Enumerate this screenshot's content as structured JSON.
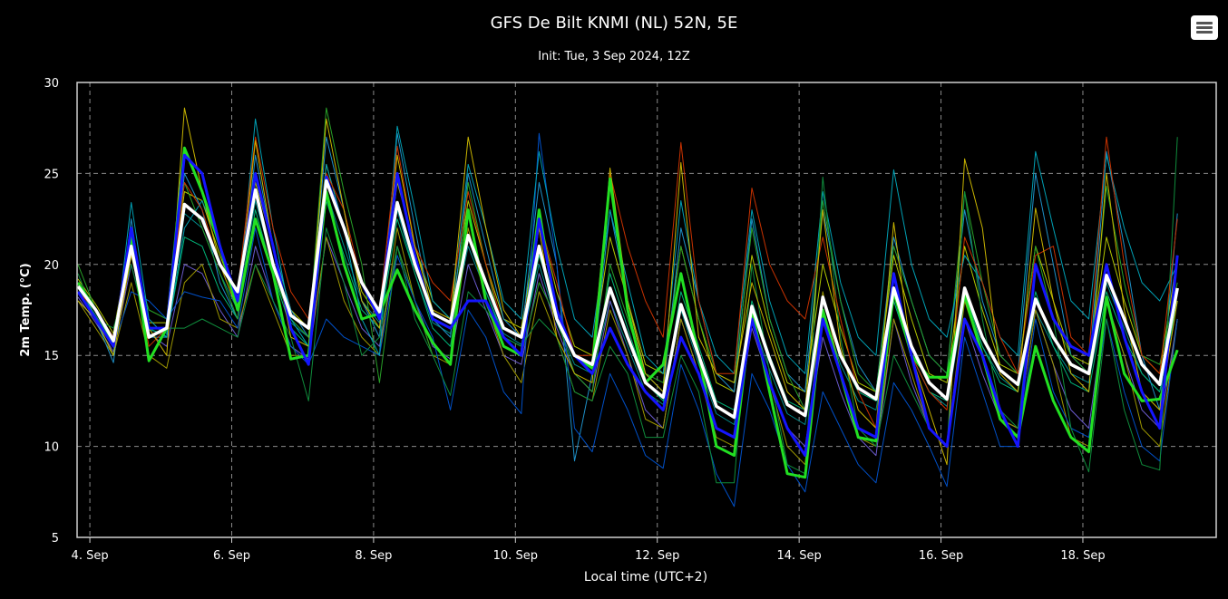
{
  "chart_data": {
    "type": "line",
    "title": "GFS De Bilt KNMI (NL) 52N, 5E",
    "subtitle": "Init: Tue, 3 Sep 2024, 12Z",
    "xlabel": "Local time (UTC+2)",
    "ylabel": "2m Temp. (°C)",
    "ylim": [
      5,
      30
    ],
    "yticks": [
      5,
      10,
      15,
      20,
      25,
      30
    ],
    "xlim_days": [
      3.82,
      19.88
    ],
    "xticks": [
      {
        "day": 4,
        "label": "4. Sep"
      },
      {
        "day": 6,
        "label": "6. Sep"
      },
      {
        "day": 8,
        "label": "8. Sep"
      },
      {
        "day": 10,
        "label": "10. Sep"
      },
      {
        "day": 12,
        "label": "12. Sep"
      },
      {
        "day": 14,
        "label": "14. Sep"
      },
      {
        "day": 16,
        "label": "16. Sep"
      },
      {
        "day": 18,
        "label": "18. Sep"
      }
    ],
    "x_start": "2024-09-03 20:00",
    "x_step_hours": 6,
    "grid": true,
    "series": [
      {
        "color": "#ffffff",
        "width": 3.5,
        "values": [
          18.8,
          17.5,
          15.8,
          21.0,
          16.0,
          16.5,
          23.3,
          22.5,
          20.0,
          18.5,
          24.1,
          20.0,
          17.2,
          16.5,
          24.6,
          22.0,
          19.0,
          17.4,
          23.4,
          20.0,
          17.3,
          16.8,
          21.6,
          19.0,
          16.5,
          16.0,
          21.0,
          17.0,
          15.0,
          14.5,
          18.7,
          16.0,
          13.5,
          12.7,
          17.8,
          15.0,
          12.2,
          11.6,
          17.7,
          14.8,
          12.3,
          11.7,
          18.2,
          15.0,
          13.2,
          12.6,
          18.7,
          15.5,
          13.5,
          12.6,
          18.7,
          16.0,
          14.2,
          13.4,
          18.1,
          16.0,
          14.5,
          14.0,
          19.4,
          17.0,
          14.5,
          13.4,
          18.7
        ]
      },
      {
        "color": "#1515ff",
        "width": 3,
        "values": [
          18.5,
          17.0,
          15.5,
          22.0,
          16.5,
          16.5,
          26.0,
          25.0,
          21.0,
          18.0,
          25.0,
          21.0,
          16.5,
          14.5,
          24.8,
          22.0,
          19.0,
          17.0,
          25.0,
          20.5,
          17.0,
          16.5,
          18.0,
          18.0,
          16.0,
          15.0,
          22.5,
          17.5,
          15.0,
          14.0,
          16.5,
          14.5,
          13.0,
          12.0,
          16.0,
          14.0,
          11.0,
          10.5,
          17.0,
          13.5,
          11.0,
          9.5,
          17.0,
          14.0,
          11.0,
          10.5,
          19.5,
          15.0,
          11.0,
          10.0,
          17.0,
          15.0,
          12.0,
          10.0,
          20.0,
          17.0,
          15.5,
          15.0,
          20.0,
          16.0,
          13.0,
          11.0,
          20.5
        ]
      },
      {
        "color": "#22e022",
        "width": 3,
        "values": [
          19.0,
          17.5,
          15.7,
          21.5,
          14.7,
          16.5,
          26.4,
          24.0,
          21.0,
          17.5,
          22.5,
          19.5,
          14.8,
          15.0,
          24.0,
          20.0,
          17.0,
          17.3,
          19.7,
          17.5,
          15.7,
          14.5,
          23.0,
          18.0,
          15.5,
          15.0,
          23.0,
          17.0,
          15.0,
          14.3,
          24.7,
          17.5,
          13.5,
          14.5,
          19.5,
          15.0,
          10.0,
          9.5,
          17.5,
          13.0,
          8.5,
          8.3,
          17.5,
          14.0,
          10.5,
          10.3,
          18.5,
          15.0,
          13.8,
          13.8,
          18.3,
          15.0,
          11.5,
          10.5,
          15.5,
          12.5,
          10.5,
          9.7,
          18.2,
          14.0,
          12.5,
          12.6,
          15.3
        ]
      },
      {
        "color": "#c8b400",
        "width": 1,
        "values": [
          18.0,
          17.0,
          15.0,
          20.5,
          16.5,
          15.0,
          28.6,
          24.0,
          20.0,
          17.5,
          26.8,
          21.0,
          16.0,
          15.5,
          28.0,
          23.0,
          18.0,
          16.5,
          26.0,
          21.0,
          17.5,
          17.0,
          27.0,
          22.0,
          17.5,
          16.0,
          22.0,
          16.0,
          14.0,
          13.5,
          25.3,
          18.0,
          14.0,
          13.0,
          25.6,
          16.0,
          14.0,
          13.5,
          19.0,
          16.0,
          13.0,
          12.0,
          23.0,
          15.5,
          12.0,
          11.0,
          22.3,
          15.0,
          12.0,
          9.0,
          25.8,
          22.0,
          14.0,
          13.0,
          23.1,
          18.0,
          14.0,
          13.0,
          25.0,
          17.5,
          13.0,
          12.0,
          18.0
        ]
      },
      {
        "color": "#c83200",
        "width": 1,
        "values": [
          18.5,
          17.5,
          16.0,
          21.0,
          15.5,
          16.5,
          24.5,
          23.0,
          20.0,
          18.5,
          27.0,
          22.0,
          18.5,
          17.0,
          25.0,
          23.0,
          19.0,
          17.5,
          26.5,
          21.0,
          19.0,
          18.0,
          24.0,
          20.0,
          16.5,
          16.0,
          22.5,
          19.0,
          15.0,
          15.0,
          25.0,
          21.0,
          18.0,
          16.0,
          26.7,
          18.0,
          14.0,
          14.0,
          24.2,
          20.0,
          18.0,
          17.0,
          21.5,
          17.0,
          13.0,
          11.0,
          18.5,
          15.0,
          13.0,
          12.0,
          21.5,
          19.0,
          16.0,
          14.0,
          20.5,
          21.0,
          16.0,
          15.0,
          27.0,
          20.0,
          15.0,
          14.0,
          22.5
        ]
      },
      {
        "color": "#0f8c3c",
        "width": 1,
        "values": [
          19.5,
          17.0,
          16.5,
          20.0,
          16.0,
          16.5,
          16.5,
          17.0,
          16.5,
          16.0,
          20.0,
          18.0,
          16.0,
          12.5,
          22.0,
          19.0,
          15.0,
          16.0,
          21.0,
          17.0,
          15.0,
          12.8,
          18.5,
          17.5,
          16.0,
          15.5,
          17.0,
          16.0,
          13.0,
          12.5,
          15.5,
          14.0,
          10.5,
          10.5,
          15.0,
          13.0,
          8.0,
          8.0,
          20.0,
          14.0,
          9.0,
          8.5,
          24.8,
          16.0,
          11.0,
          10.0,
          15.0,
          13.0,
          11.0,
          10.0,
          24.0,
          17.0,
          12.0,
          11.0,
          20.0,
          17.0,
          11.0,
          8.6,
          17.0,
          12.0,
          9.0,
          8.7,
          27.0
        ]
      },
      {
        "color": "#00a0b4",
        "width": 1,
        "values": [
          19.0,
          17.0,
          15.0,
          23.4,
          17.0,
          16.0,
          22.0,
          23.5,
          21.0,
          17.5,
          28.0,
          22.0,
          17.0,
          15.5,
          25.5,
          22.0,
          17.0,
          15.0,
          27.6,
          23.0,
          18.0,
          17.0,
          25.5,
          22.0,
          18.0,
          17.0,
          26.2,
          21.0,
          17.0,
          16.0,
          23.0,
          19.0,
          15.0,
          14.0,
          23.5,
          18.0,
          15.0,
          14.0,
          23.0,
          18.0,
          15.0,
          14.0,
          24.0,
          19.0,
          16.0,
          15.0,
          25.2,
          20.0,
          17.0,
          16.0,
          20.5,
          19.0,
          16.0,
          15.0,
          26.2,
          22.0,
          18.0,
          17.0,
          26.0,
          22.0,
          19.0,
          18.0,
          20.0
        ]
      },
      {
        "color": "#0050c8",
        "width": 1,
        "values": [
          18.0,
          17.0,
          15.5,
          18.5,
          18.0,
          17.0,
          18.5,
          18.2,
          18.0,
          16.5,
          22.0,
          18.0,
          15.5,
          14.5,
          17.0,
          16.0,
          15.5,
          15.0,
          20.5,
          18.0,
          16.0,
          12.0,
          17.5,
          16.0,
          13.0,
          11.8,
          27.2,
          20.0,
          11.0,
          9.7,
          14.0,
          12.0,
          9.5,
          8.8,
          14.5,
          12.0,
          8.5,
          6.7,
          14.0,
          12.0,
          9.0,
          7.5,
          13.0,
          11.0,
          9.0,
          8.0,
          13.5,
          12.0,
          10.0,
          7.8,
          16.0,
          13.0,
          10.0,
          10.0,
          17.0,
          13.0,
          11.0,
          10.5,
          17.0,
          13.0,
          10.0,
          9.2,
          17.0
        ]
      },
      {
        "color": "#28a028",
        "width": 1,
        "values": [
          20.0,
          17.5,
          16.0,
          20.5,
          17.5,
          17.0,
          24.5,
          22.0,
          19.5,
          17.0,
          22.5,
          19.5,
          17.0,
          16.0,
          28.6,
          24.0,
          20.0,
          13.5,
          21.0,
          18.0,
          15.0,
          15.0,
          24.5,
          20.0,
          16.0,
          15.0,
          19.0,
          17.0,
          14.0,
          13.0,
          20.0,
          17.0,
          14.0,
          13.5,
          21.0,
          17.0,
          14.0,
          13.5,
          22.0,
          17.0,
          14.0,
          12.0,
          23.5,
          18.0,
          14.0,
          13.0,
          21.0,
          18.0,
          15.0,
          14.0,
          24.0,
          19.0,
          15.0,
          14.0,
          21.0,
          17.0,
          15.0,
          14.0,
          24.3,
          19.0,
          15.0,
          14.5,
          19.0
        ]
      },
      {
        "color": "#1e90c8",
        "width": 1,
        "values": [
          18.5,
          17.0,
          14.6,
          22.5,
          16.0,
          16.0,
          25.0,
          23.0,
          19.0,
          17.0,
          26.0,
          21.0,
          17.5,
          16.0,
          27.0,
          23.0,
          18.0,
          16.0,
          27.2,
          22.0,
          17.0,
          16.0,
          25.0,
          21.0,
          17.0,
          16.0,
          24.5,
          20.0,
          9.2,
          14.0,
          23.0,
          18.0,
          14.0,
          13.0,
          22.0,
          18.0,
          14.0,
          13.0,
          22.5,
          17.0,
          14.0,
          13.0,
          23.0,
          18.0,
          14.5,
          13.0,
          21.5,
          18.0,
          15.0,
          14.0,
          23.0,
          18.0,
          15.0,
          14.0,
          25.0,
          20.0,
          15.0,
          14.0,
          26.2,
          21.0,
          15.0,
          12.0,
          22.8
        ]
      },
      {
        "color": "#9c9600",
        "width": 1,
        "values": [
          18.0,
          16.5,
          15.0,
          19.0,
          15.0,
          14.3,
          19.0,
          20.0,
          17.0,
          16.5,
          20.0,
          17.5,
          15.0,
          15.0,
          21.5,
          18.0,
          16.0,
          15.0,
          22.0,
          18.0,
          15.0,
          14.5,
          22.0,
          18.0,
          15.0,
          13.5,
          18.5,
          16.0,
          13.0,
          12.5,
          17.5,
          15.0,
          11.5,
          11.0,
          17.0,
          14.0,
          10.5,
          10.0,
          17.5,
          13.5,
          10.0,
          9.0,
          18.5,
          14.0,
          10.5,
          10.0,
          17.0,
          14.0,
          11.0,
          10.0,
          18.0,
          15.0,
          11.5,
          11.0,
          17.5,
          14.5,
          10.5,
          10.0,
          18.0,
          15.0,
          11.0,
          10.0,
          17.0
        ]
      },
      {
        "color": "#00b478",
        "width": 1,
        "values": [
          19.0,
          17.0,
          15.5,
          21.0,
          16.5,
          16.0,
          21.5,
          21.0,
          18.5,
          17.0,
          23.0,
          19.5,
          16.5,
          15.5,
          23.5,
          20.5,
          17.5,
          16.5,
          22.5,
          19.5,
          16.5,
          15.5,
          21.5,
          18.5,
          16.0,
          15.5,
          20.5,
          17.5,
          15.0,
          14.0,
          19.5,
          16.5,
          13.5,
          12.5,
          18.5,
          15.5,
          12.5,
          12.0,
          18.0,
          15.0,
          12.5,
          12.0,
          18.0,
          15.0,
          13.0,
          12.5,
          18.0,
          15.0,
          13.0,
          12.5,
          18.5,
          15.5,
          13.5,
          13.0,
          18.5,
          15.5,
          13.5,
          13.0,
          18.5,
          16.0,
          14.0,
          13.0,
          18.0
        ]
      },
      {
        "color": "#6a5acd",
        "width": 1,
        "values": [
          18.2,
          16.8,
          15.2,
          20.0,
          16.2,
          15.5,
          20.0,
          19.5,
          17.5,
          16.0,
          21.0,
          18.0,
          15.5,
          14.8,
          21.5,
          19.0,
          16.5,
          15.5,
          21.0,
          18.0,
          15.5,
          14.8,
          20.0,
          17.5,
          15.0,
          14.5,
          19.5,
          16.5,
          14.0,
          13.0,
          18.0,
          15.0,
          12.0,
          11.0,
          17.0,
          14.0,
          11.0,
          10.5,
          16.5,
          13.5,
          11.0,
          10.0,
          16.0,
          13.0,
          10.5,
          9.5,
          17.0,
          13.5,
          11.0,
          10.0,
          17.0,
          14.0,
          11.5,
          11.0,
          17.5,
          14.5,
          12.0,
          11.0,
          18.0,
          15.0,
          12.0,
          11.0,
          17.0
        ]
      },
      {
        "color": "#b4c800",
        "width": 1,
        "values": [
          19.2,
          17.8,
          16.2,
          21.8,
          16.8,
          16.8,
          24.0,
          23.5,
          20.5,
          18.0,
          24.5,
          21.0,
          17.5,
          16.5,
          25.5,
          22.0,
          18.5,
          17.0,
          24.5,
          21.0,
          18.0,
          17.0,
          23.5,
          20.0,
          17.0,
          16.5,
          22.5,
          18.5,
          15.5,
          15.0,
          21.5,
          18.0,
          14.5,
          14.0,
          21.0,
          17.0,
          13.5,
          13.0,
          20.5,
          16.5,
          13.5,
          13.0,
          20.0,
          16.5,
          13.5,
          13.0,
          20.5,
          17.0,
          14.0,
          13.5,
          21.0,
          17.5,
          14.5,
          14.0,
          21.0,
          18.0,
          15.0,
          14.5,
          21.5,
          18.0,
          15.0,
          14.0,
          20.5
        ]
      },
      {
        "color": "#008b8b",
        "width": 1,
        "values": [
          18.7,
          17.2,
          15.6,
          21.2,
          16.4,
          16.2,
          22.8,
          22.0,
          19.5,
          17.5,
          23.5,
          20.0,
          16.8,
          16.0,
          24.0,
          21.0,
          18.0,
          16.8,
          23.0,
          19.5,
          16.8,
          16.2,
          21.0,
          18.5,
          16.2,
          15.6,
          20.0,
          16.8,
          14.5,
          14.0,
          18.0,
          15.5,
          13.0,
          12.3,
          17.5,
          14.5,
          11.8,
          11.2,
          17.0,
          14.2,
          11.8,
          11.2,
          17.5,
          14.5,
          12.5,
          12.0,
          18.0,
          15.0,
          13.0,
          12.2,
          18.0,
          15.5,
          13.8,
          13.0,
          17.5,
          15.5,
          14.0,
          13.5,
          19.0,
          16.5,
          14.0,
          13.0,
          18.0
        ]
      }
    ]
  }
}
